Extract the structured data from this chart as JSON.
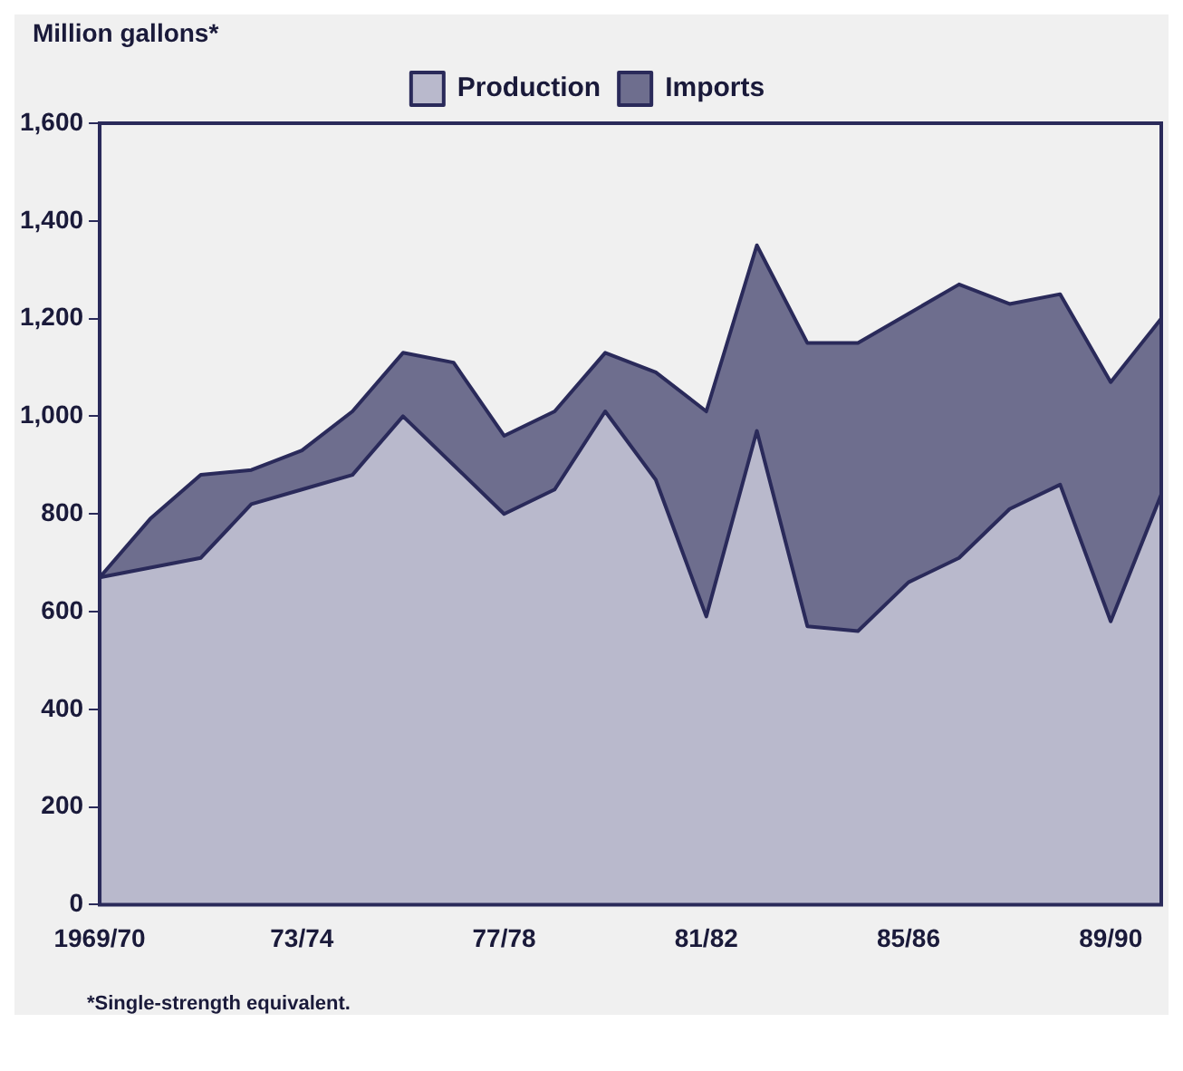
{
  "chart_data": {
    "type": "area",
    "stacked": true,
    "ylabel": "Million gallons*",
    "categories": [
      "1969/70",
      null,
      null,
      null,
      "73/74",
      null,
      null,
      null,
      "77/78",
      null,
      null,
      null,
      "81/82",
      null,
      null,
      null,
      "85/86",
      null,
      null,
      null,
      "89/90",
      null
    ],
    "series": [
      {
        "name": "Production",
        "color": "#b9b9cc",
        "values": [
          670,
          690,
          710,
          820,
          850,
          880,
          1000,
          900,
          800,
          850,
          1010,
          870,
          590,
          970,
          570,
          560,
          660,
          710,
          810,
          860,
          580,
          840
        ]
      },
      {
        "name": "Imports",
        "color": "#6e6e8e",
        "values": [
          0,
          100,
          170,
          70,
          80,
          130,
          130,
          210,
          160,
          160,
          120,
          220,
          420,
          380,
          580,
          590,
          550,
          560,
          420,
          390,
          490,
          360
        ]
      }
    ],
    "ylim": [
      0,
      1600
    ],
    "yticks": [
      0,
      200,
      400,
      600,
      800,
      {
        "value": 1000,
        "label": "1,000"
      },
      {
        "value": 1200,
        "label": "1,200"
      },
      {
        "value": 1400,
        "label": "1,400"
      },
      {
        "value": 1600,
        "label": "1,600"
      }
    ],
    "grid": false,
    "legend": "top",
    "annotations": [
      "*Single-strength equivalent."
    ]
  }
}
